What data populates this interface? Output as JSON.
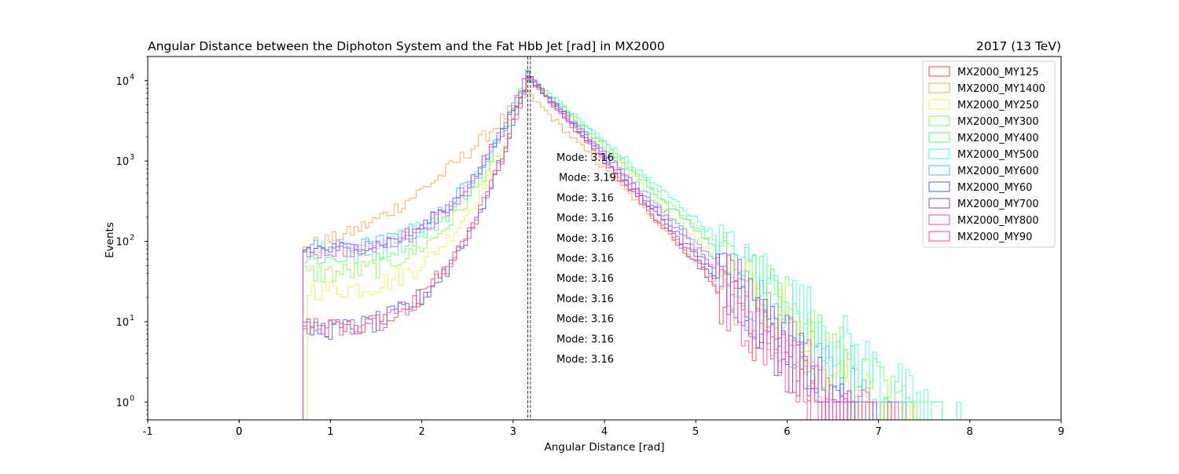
{
  "chart_data": {
    "type": "line",
    "title": "Angular Distance between the Diphoton System and the Fat Hbb Jet [rad] in MX2000",
    "title_right": "2017 (13 TeV)",
    "xlabel": "Angular Distance [rad]",
    "ylabel": "Events",
    "xlim": [
      -1,
      9
    ],
    "ylim": [
      0.6,
      20000
    ],
    "yscale": "log",
    "x_ticks": [
      "-1",
      "0",
      "0",
      "1",
      "2",
      "3",
      "4",
      "5",
      "6",
      "7",
      "8",
      "9"
    ],
    "x_tick_values": [
      -1,
      0,
      0,
      1,
      2,
      3,
      4,
      5,
      6,
      7,
      8,
      9
    ],
    "y_tick_values": [
      1,
      10,
      100,
      1000,
      10000
    ],
    "y_tick_labels": [
      {
        "base": "10",
        "exp": "0"
      },
      {
        "base": "10",
        "exp": "1"
      },
      {
        "base": "10",
        "exp": "2"
      },
      {
        "base": "10",
        "exp": "3"
      },
      {
        "base": "10",
        "exp": "4"
      }
    ],
    "grid": false,
    "legend_position": "top-right",
    "histogram": {
      "x_min": 0.7,
      "peak_x": 3.16,
      "bin_width": 0.04
    },
    "series": [
      {
        "name": "MX2000_MY125",
        "color": "#ff4040",
        "mode": 3.16,
        "mode_label": "Mode: 3.16",
        "start_level": 8,
        "start_x": 0.7,
        "end_x": 6.9,
        "left_slope": 0
      },
      {
        "name": "MX2000_MY1400",
        "color": "#ffa040",
        "mode": 3.19,
        "mode_label": "Mode: 3.19",
        "start_level": 90,
        "start_x": 0.7,
        "end_x": 7.3,
        "left_slope": 0,
        "peak_level": 7000
      },
      {
        "name": "MX2000_MY250",
        "color": "#f0f040",
        "mode": 3.16,
        "mode_label": "Mode: 3.16",
        "start_level": 25,
        "start_x": 0.75,
        "end_x": 7.4,
        "left_slope": 0
      },
      {
        "name": "MX2000_MY300",
        "color": "#80ff40",
        "mode": 3.16,
        "mode_label": "Mode: 3.16",
        "start_level": 40,
        "start_x": 0.7,
        "end_x": 7.7,
        "left_slope": 0
      },
      {
        "name": "MX2000_MY400",
        "color": "#40ff80",
        "mode": 3.16,
        "mode_label": "Mode: 3.16",
        "start_level": 60,
        "start_x": 0.7,
        "end_x": 7.6,
        "left_slope": 0
      },
      {
        "name": "MX2000_MY500",
        "color": "#40ffe0",
        "mode": 3.16,
        "mode_label": "Mode: 3.16",
        "start_level": 80,
        "start_x": 0.7,
        "end_x": 7.9,
        "left_slope": 0
      },
      {
        "name": "MX2000_MY600",
        "color": "#40c0ff",
        "mode": 3.16,
        "mode_label": "Mode: 3.16",
        "start_level": 85,
        "start_x": 0.7,
        "end_x": 7.3,
        "left_slope": 0
      },
      {
        "name": "MX2000_MY60",
        "color": "#4060ff",
        "mode": 3.16,
        "mode_label": "Mode: 3.16",
        "start_level": 8,
        "start_x": 0.7,
        "end_x": 7.0,
        "left_slope": 0
      },
      {
        "name": "MX2000_MY700",
        "color": "#8040ff",
        "mode": 3.16,
        "mode_label": "Mode: 3.16",
        "start_level": 80,
        "start_x": 0.7,
        "end_x": 7.1,
        "left_slope": 0
      },
      {
        "name": "MX2000_MY800",
        "color": "#e040ff",
        "mode": 3.16,
        "mode_label": "Mode: 3.16",
        "start_level": 75,
        "start_x": 0.7,
        "end_x": 7.2,
        "left_slope": 0
      },
      {
        "name": "MX2000_MY90",
        "color": "#ff40a0",
        "mode": 3.16,
        "mode_label": "Mode: 3.16",
        "start_level": 8,
        "start_x": 0.7,
        "end_x": 6.9,
        "left_slope": 0
      }
    ]
  }
}
